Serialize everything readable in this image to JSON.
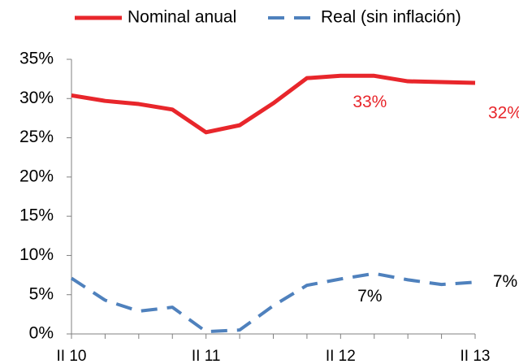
{
  "chart_data": {
    "type": "line",
    "categories": [
      "II 10",
      null,
      null,
      null,
      "II 11",
      null,
      null,
      null,
      "II 12",
      null,
      null,
      null,
      "II 13"
    ],
    "series": [
      {
        "name": "Nominal anual",
        "color": "#e8262b",
        "dash": false,
        "values": [
          30.4,
          29.7,
          29.3,
          28.6,
          25.7,
          26.6,
          29.4,
          32.6,
          32.9,
          32.9,
          32.2,
          32.1,
          32.0
        ],
        "value_labels": [
          null,
          null,
          null,
          null,
          null,
          null,
          null,
          null,
          "33%",
          null,
          null,
          null,
          "32%"
        ]
      },
      {
        "name": "Real (sin inflación)",
        "color": "#4f81bd",
        "dash": true,
        "values": [
          7.1,
          4.3,
          2.9,
          3.4,
          0.3,
          0.5,
          3.6,
          6.2,
          7.0,
          7.7,
          6.9,
          6.3,
          6.6
        ],
        "value_labels": [
          null,
          null,
          null,
          null,
          null,
          null,
          null,
          null,
          "7%",
          null,
          null,
          null,
          "7%"
        ]
      }
    ],
    "ylim": [
      0,
      35
    ],
    "yticks": [
      {
        "value": 0,
        "label": "0%"
      },
      {
        "value": 5,
        "label": "5%"
      },
      {
        "value": 10,
        "label": "10%"
      },
      {
        "value": 15,
        "label": "15%"
      },
      {
        "value": 20,
        "label": "20%"
      },
      {
        "value": 25,
        "label": "25%"
      },
      {
        "value": 30,
        "label": "30%"
      },
      {
        "value": 35,
        "label": "35%"
      }
    ],
    "grid": false,
    "legend": "top"
  }
}
